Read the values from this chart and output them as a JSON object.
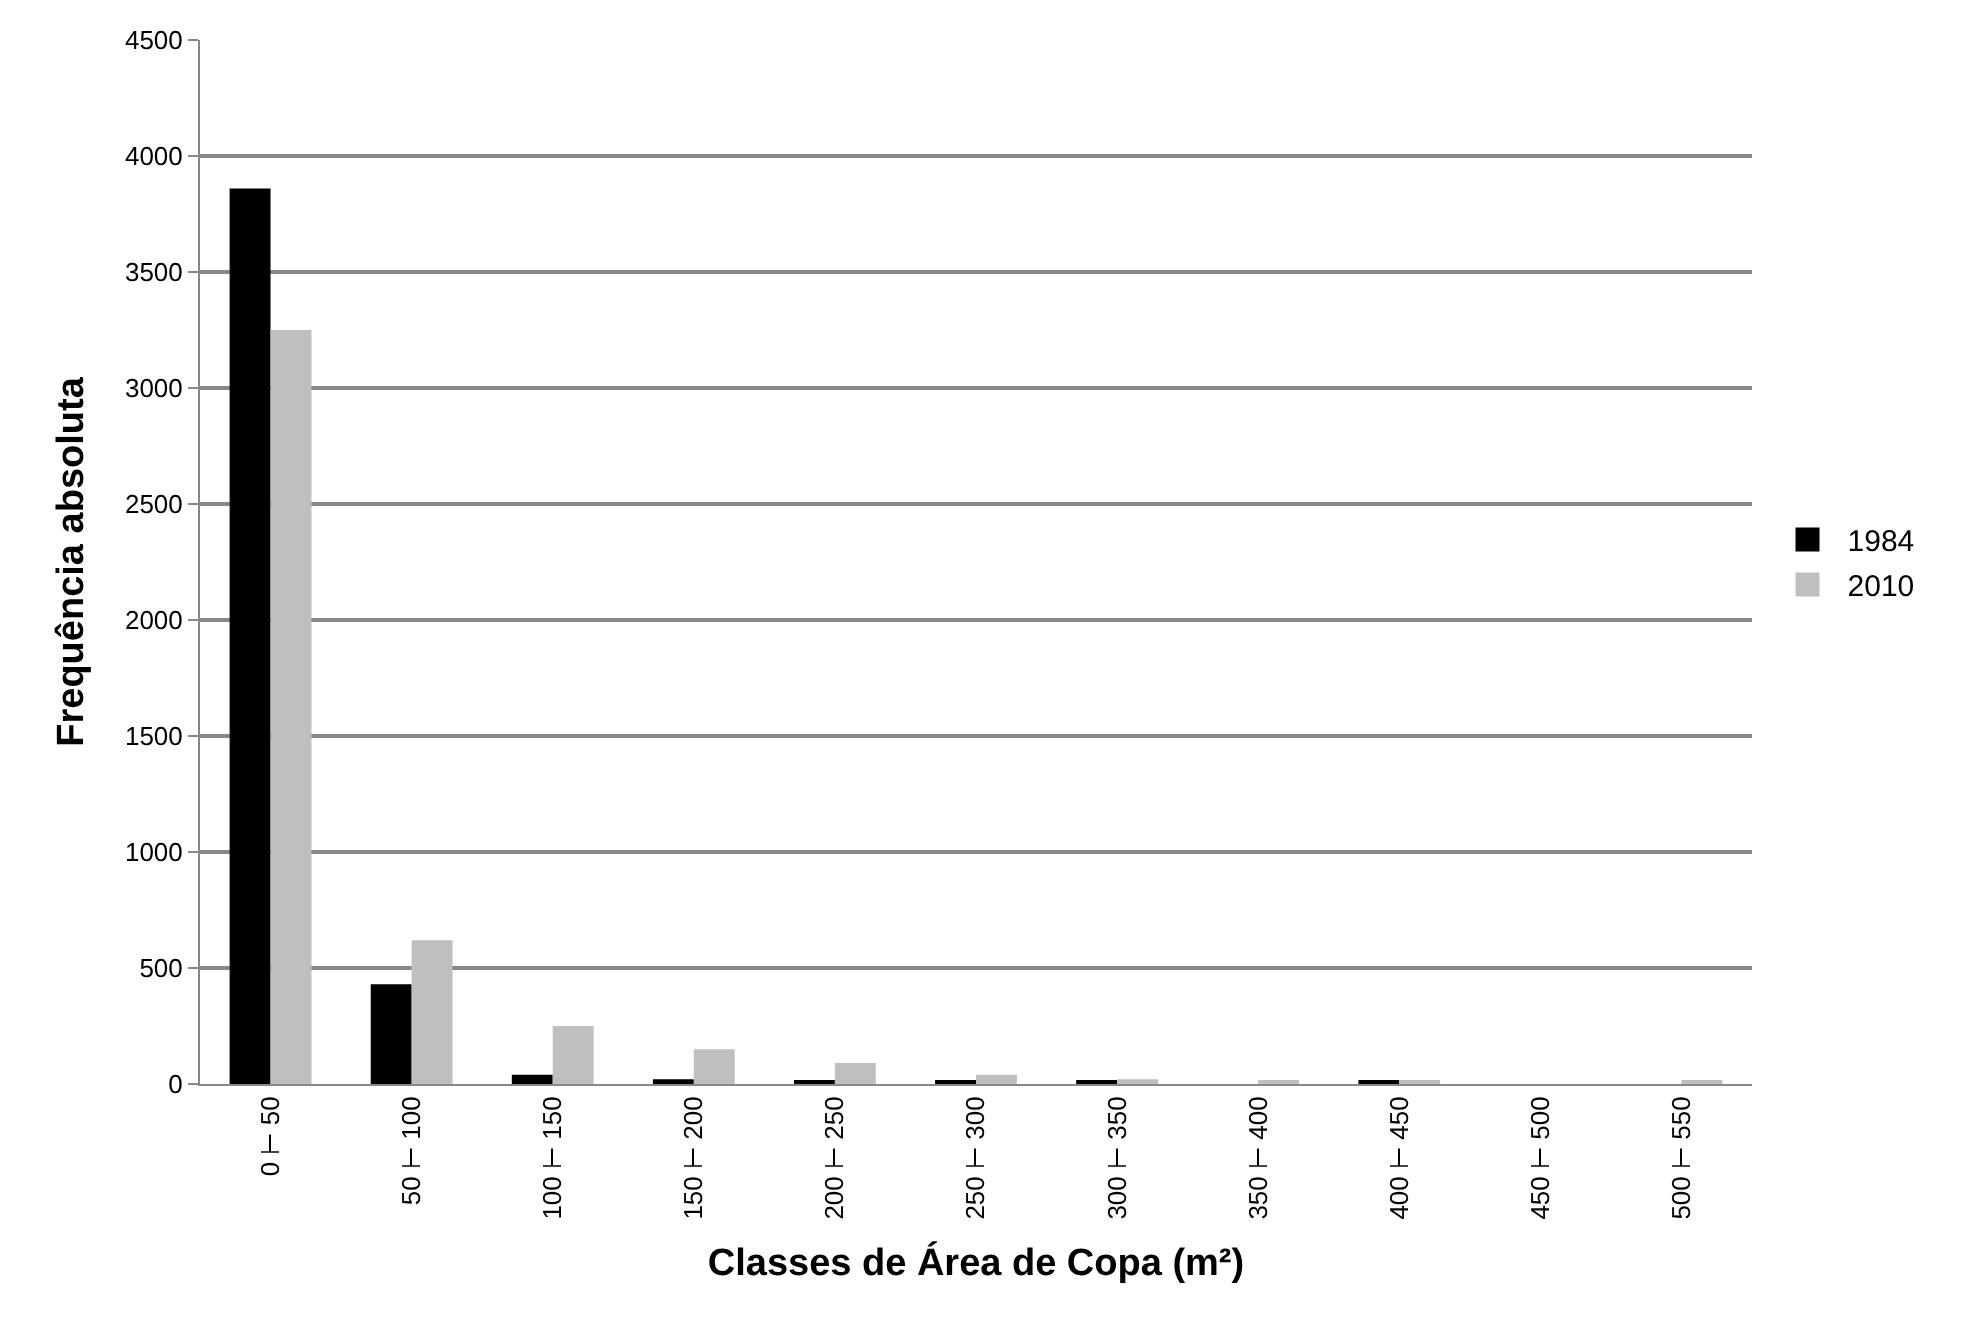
{
  "chart_data": {
    "type": "bar",
    "xlabel": "Classes de Área de Copa (m²)",
    "ylabel": "Frequência absoluta",
    "categories": [
      "0 ⊢ 50",
      "50 ⊢ 100",
      "100 ⊢ 150",
      "150 ⊢ 200",
      "200 ⊢ 250",
      "250 ⊢ 300",
      "300 ⊢ 350",
      "350 ⊢ 400",
      "400 ⊢ 450",
      "450 ⊢ 500",
      "500 ⊢ 550"
    ],
    "series": [
      {
        "name": "1984",
        "color": "#000000",
        "values": [
          3860,
          430,
          40,
          20,
          10,
          10,
          10,
          0,
          10,
          0,
          0
        ]
      },
      {
        "name": "2010",
        "color": "#bfbfbf",
        "values": [
          3250,
          620,
          250,
          150,
          90,
          40,
          20,
          10,
          10,
          0,
          10
        ]
      }
    ],
    "ylim": [
      0,
      4500
    ],
    "yticks": [
      0,
      500,
      1000,
      1500,
      2000,
      2500,
      3000,
      3500,
      4000,
      4500
    ],
    "grid": "y",
    "legend": "right"
  }
}
